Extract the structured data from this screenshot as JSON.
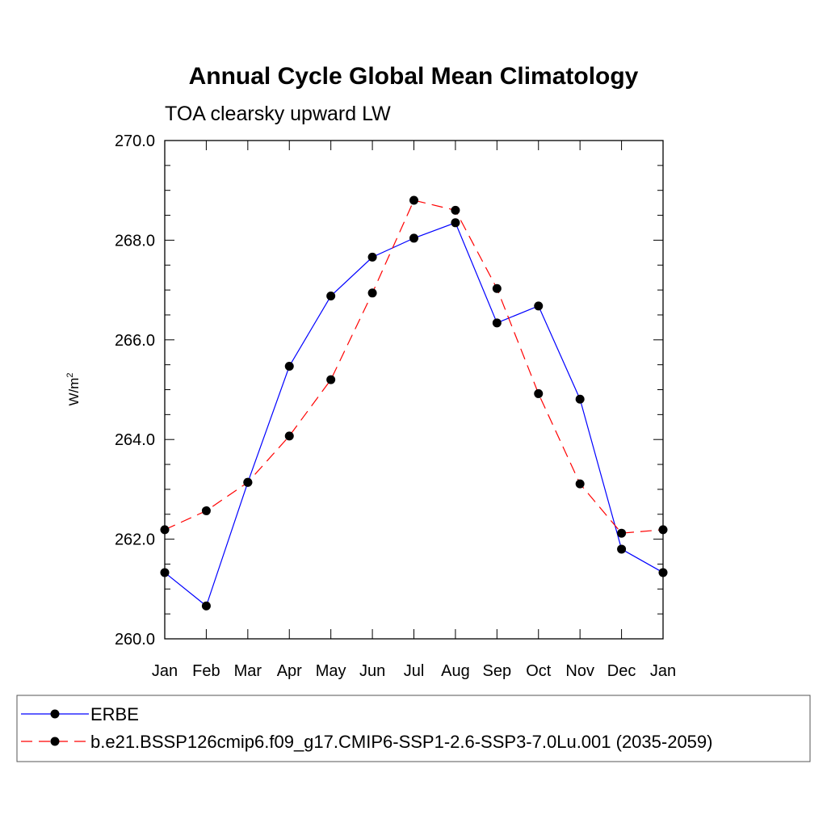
{
  "chart_data": {
    "type": "line",
    "title": "Annual Cycle Global Mean Climatology",
    "subtitle": "TOA clearsky upward LW",
    "xlabel": "",
    "ylabel_base": "W/m",
    "ylabel_sup": "2",
    "categories": [
      "Jan",
      "Feb",
      "Mar",
      "Apr",
      "May",
      "Jun",
      "Jul",
      "Aug",
      "Sep",
      "Oct",
      "Nov",
      "Dec",
      "Jan"
    ],
    "ylim": [
      260.0,
      270.0
    ],
    "yticks": [
      "260.0",
      "262.0",
      "264.0",
      "266.0",
      "268.0",
      "270.0"
    ],
    "grid": false,
    "legend_position": "bottom",
    "series": [
      {
        "name": "ERBE",
        "color": "#0000ff",
        "dash": "solid",
        "values": [
          261.33,
          260.66,
          263.14,
          265.47,
          266.88,
          267.66,
          268.04,
          268.35,
          266.34,
          266.68,
          264.81,
          261.8,
          261.33
        ]
      },
      {
        "name": "b.e21.BSSP126cmip6.f09_g17.CMIP6-SSP1-2.6-SSP3-7.0Lu.001 (2035-2059)",
        "color": "#ff0000",
        "dash": "dashed",
        "values": [
          262.19,
          262.57,
          263.14,
          264.07,
          265.2,
          266.94,
          268.8,
          268.6,
          267.03,
          264.92,
          263.11,
          262.12,
          262.19
        ]
      }
    ]
  }
}
